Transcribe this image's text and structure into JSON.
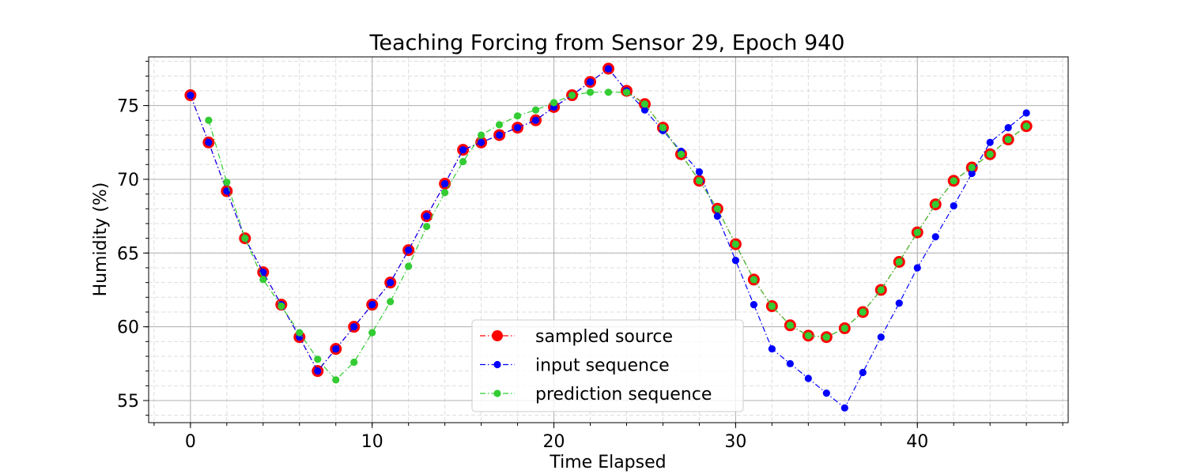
{
  "chart_data": {
    "type": "line",
    "title": "Teaching Forcing from Sensor 29, Epoch 940",
    "xlabel": "Time Elapsed",
    "ylabel": "Humidity (%)",
    "xlim": [
      -2.3,
      48.3
    ],
    "ylim": [
      53.5,
      78.3
    ],
    "x_ticks": [
      0,
      10,
      20,
      30,
      40
    ],
    "y_ticks": [
      55,
      60,
      65,
      70,
      75
    ],
    "x_minor_step": 2,
    "y_minor_step": 1,
    "grid": true,
    "legend_position": "lower-center",
    "series": [
      {
        "name": "sampled source",
        "color": "#ff0000",
        "marker": "large-circle",
        "x": [
          0,
          1,
          2,
          3,
          4,
          5,
          6,
          7,
          8,
          9,
          10,
          11,
          12,
          13,
          14,
          15,
          16,
          17,
          18,
          19,
          20,
          21,
          22,
          23,
          24,
          25,
          26,
          27,
          28,
          29,
          30,
          31,
          32,
          33,
          34,
          35,
          36,
          37,
          38,
          39,
          40,
          41,
          42,
          43,
          44,
          45,
          46
        ],
        "values": [
          75.7,
          72.5,
          69.2,
          66.0,
          63.7,
          61.5,
          59.3,
          57.0,
          58.5,
          60.0,
          61.5,
          63.0,
          65.2,
          67.5,
          69.7,
          72.0,
          72.5,
          73.0,
          73.5,
          74.0,
          74.9,
          75.7,
          76.6,
          77.5,
          76.0,
          75.1,
          73.5,
          71.7,
          69.9,
          68.0,
          65.6,
          63.2,
          61.4,
          60.1,
          59.4,
          59.3,
          59.9,
          61.0,
          62.5,
          64.4,
          66.4,
          68.3,
          69.9,
          70.8,
          71.7,
          72.7,
          73.6
        ]
      },
      {
        "name": "input sequence",
        "color": "#0000ff",
        "marker": "circle",
        "x": [
          0,
          1,
          2,
          3,
          4,
          5,
          6,
          7,
          8,
          9,
          10,
          11,
          12,
          13,
          14,
          15,
          16,
          17,
          18,
          19,
          20,
          21,
          22,
          23,
          24,
          25,
          26,
          27,
          28,
          29,
          30,
          31,
          32,
          33,
          34,
          35,
          36,
          37,
          38,
          39,
          40,
          41,
          42,
          43,
          44,
          45,
          46
        ],
        "values": [
          75.7,
          72.5,
          69.2,
          66.0,
          63.7,
          61.5,
          59.3,
          57.0,
          58.5,
          60.0,
          61.5,
          63.0,
          65.2,
          67.5,
          69.7,
          72.0,
          72.5,
          73.0,
          73.5,
          74.0,
          74.9,
          75.7,
          76.6,
          77.5,
          76.0,
          74.7,
          73.3,
          71.9,
          70.5,
          67.5,
          64.5,
          61.5,
          58.5,
          57.5,
          56.5,
          55.5,
          54.5,
          56.9,
          59.3,
          61.6,
          64.0,
          66.1,
          68.2,
          70.4,
          72.5,
          73.5,
          74.5
        ]
      },
      {
        "name": "prediction sequence",
        "color": "#33cc33",
        "marker": "circle",
        "x": [
          1,
          2,
          3,
          4,
          5,
          6,
          7,
          8,
          9,
          10,
          11,
          12,
          13,
          14,
          15,
          16,
          17,
          18,
          19,
          20,
          21,
          22,
          23,
          24,
          25,
          26,
          27,
          28,
          29,
          30,
          31,
          32,
          33,
          34,
          35,
          36,
          37,
          38,
          39,
          40,
          41,
          42,
          43,
          44,
          45,
          46
        ],
        "values": [
          74.0,
          69.8,
          66.0,
          63.2,
          61.4,
          59.6,
          57.8,
          56.4,
          57.6,
          59.6,
          61.7,
          64.1,
          66.8,
          69.1,
          71.2,
          73.0,
          73.7,
          74.3,
          74.7,
          75.2,
          75.7,
          75.9,
          75.9,
          75.9,
          75.1,
          73.5,
          71.7,
          69.9,
          68.0,
          65.6,
          63.2,
          61.4,
          60.1,
          59.4,
          59.3,
          59.9,
          61.0,
          62.5,
          64.4,
          66.4,
          68.3,
          69.9,
          70.8,
          71.7,
          72.7,
          73.6
        ]
      }
    ]
  }
}
